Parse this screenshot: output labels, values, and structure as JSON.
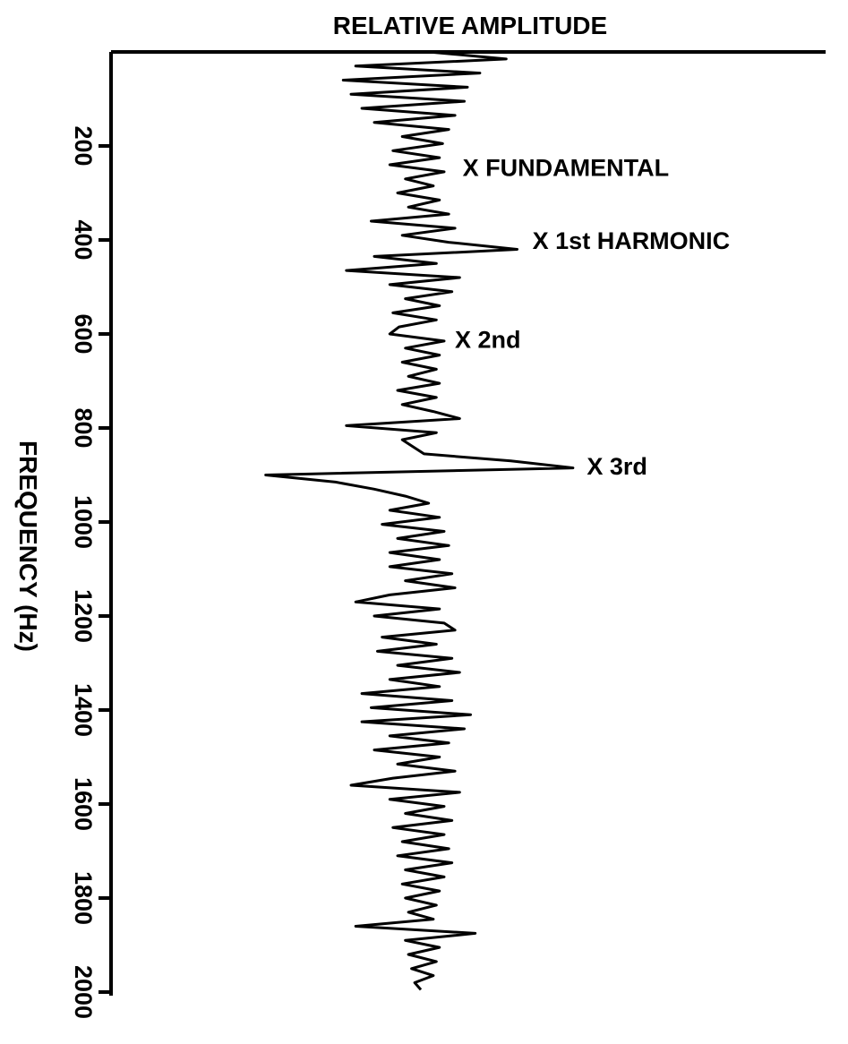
{
  "chart_data": {
    "type": "line",
    "orientation": "vertical-frequency",
    "title": "RELATIVE AMPLITUDE",
    "ylabel": "FREQUENCY (Hz)",
    "xlabel": "",
    "ylim": [
      0,
      2000
    ],
    "yticks": [
      200,
      400,
      600,
      800,
      1000,
      1200,
      1400,
      1600,
      1800,
      2000
    ],
    "ytick_labels": [
      "200",
      "400",
      "600",
      "800",
      "1000",
      "1200",
      "1400",
      "1600",
      "1800",
      "2000"
    ],
    "xlim": [
      -1.5,
      1.5
    ],
    "grid": false,
    "annotations": [
      {
        "text": "X FUNDAMENTAL",
        "frequency": 245,
        "amplitude": 0.2
      },
      {
        "text": "X 1st HARMONIC",
        "frequency": 400,
        "amplitude": 0.65
      },
      {
        "text": "X 2nd",
        "frequency": 610,
        "amplitude": 0.15
      },
      {
        "text": "X 3rd",
        "frequency": 880,
        "amplitude": 1.0
      }
    ],
    "series": [
      {
        "frequency": [
          0,
          15,
          30,
          45,
          60,
          75,
          90,
          105,
          120,
          135,
          150,
          165,
          180,
          195,
          210,
          225,
          240,
          255,
          270,
          285,
          300,
          315,
          330,
          345,
          360,
          375,
          390,
          405,
          420,
          435,
          450,
          465,
          480,
          495,
          510,
          525,
          540,
          555,
          570,
          585,
          600,
          615,
          630,
          645,
          660,
          675,
          690,
          705,
          720,
          735,
          750,
          765,
          780,
          795,
          810,
          825,
          840,
          855,
          870,
          885,
          900,
          915,
          930,
          945,
          960,
          975,
          990,
          1005,
          1020,
          1035,
          1050,
          1065,
          1080,
          1095,
          1110,
          1125,
          1140,
          1155,
          1170,
          1185,
          1200,
          1215,
          1230,
          1245,
          1260,
          1275,
          1290,
          1305,
          1320,
          1335,
          1350,
          1365,
          1380,
          1395,
          1410,
          1425,
          1440,
          1455,
          1470,
          1485,
          1500,
          1515,
          1530,
          1545,
          1560,
          1575,
          1590,
          1605,
          1620,
          1635,
          1650,
          1665,
          1680,
          1695,
          1710,
          1725,
          1740,
          1755,
          1770,
          1785,
          1800,
          1815,
          1830,
          1845,
          1860,
          1875,
          1890,
          1905,
          1920,
          1935,
          1950,
          1965,
          1980,
          1995
        ],
        "amplitude": [
          0.05,
          0.55,
          -0.42,
          0.38,
          -0.5,
          0.3,
          -0.45,
          0.28,
          -0.38,
          0.22,
          -0.3,
          0.18,
          -0.12,
          0.14,
          -0.18,
          0.12,
          -0.2,
          0.15,
          -0.1,
          0.08,
          -0.15,
          0.12,
          -0.08,
          0.18,
          -0.32,
          0.22,
          -0.12,
          0.18,
          0.62,
          -0.3,
          0.1,
          -0.48,
          0.25,
          -0.2,
          0.2,
          -0.1,
          0.12,
          -0.18,
          0.1,
          -0.14,
          -0.2,
          0.15,
          -0.1,
          0.12,
          -0.12,
          0.1,
          -0.08,
          0.12,
          -0.15,
          0.1,
          -0.12,
          0.08,
          0.25,
          -0.48,
          0.1,
          -0.12,
          -0.05,
          0.02,
          0.58,
          0.98,
          -1.0,
          -0.55,
          -0.3,
          -0.1,
          0.05,
          -0.2,
          0.12,
          -0.25,
          0.15,
          -0.15,
          0.18,
          -0.2,
          0.12,
          -0.2,
          0.2,
          -0.1,
          0.22,
          -0.2,
          -0.42,
          0.12,
          -0.3,
          0.15,
          0.22,
          -0.25,
          0.1,
          -0.28,
          0.2,
          -0.15,
          0.25,
          -0.2,
          0.12,
          -0.38,
          0.2,
          -0.32,
          0.32,
          -0.38,
          0.28,
          -0.2,
          0.18,
          -0.3,
          0.12,
          -0.15,
          0.22,
          -0.18,
          -0.45,
          0.25,
          -0.2,
          0.15,
          -0.1,
          0.2,
          -0.18,
          0.15,
          -0.12,
          0.18,
          -0.15,
          0.2,
          -0.1,
          0.15,
          -0.12,
          0.12,
          -0.1,
          0.1,
          -0.08,
          0.08,
          -0.42,
          0.35,
          -0.1,
          0.12,
          -0.08,
          0.1,
          -0.06,
          0.08,
          -0.04,
          0.0
        ]
      }
    ]
  }
}
